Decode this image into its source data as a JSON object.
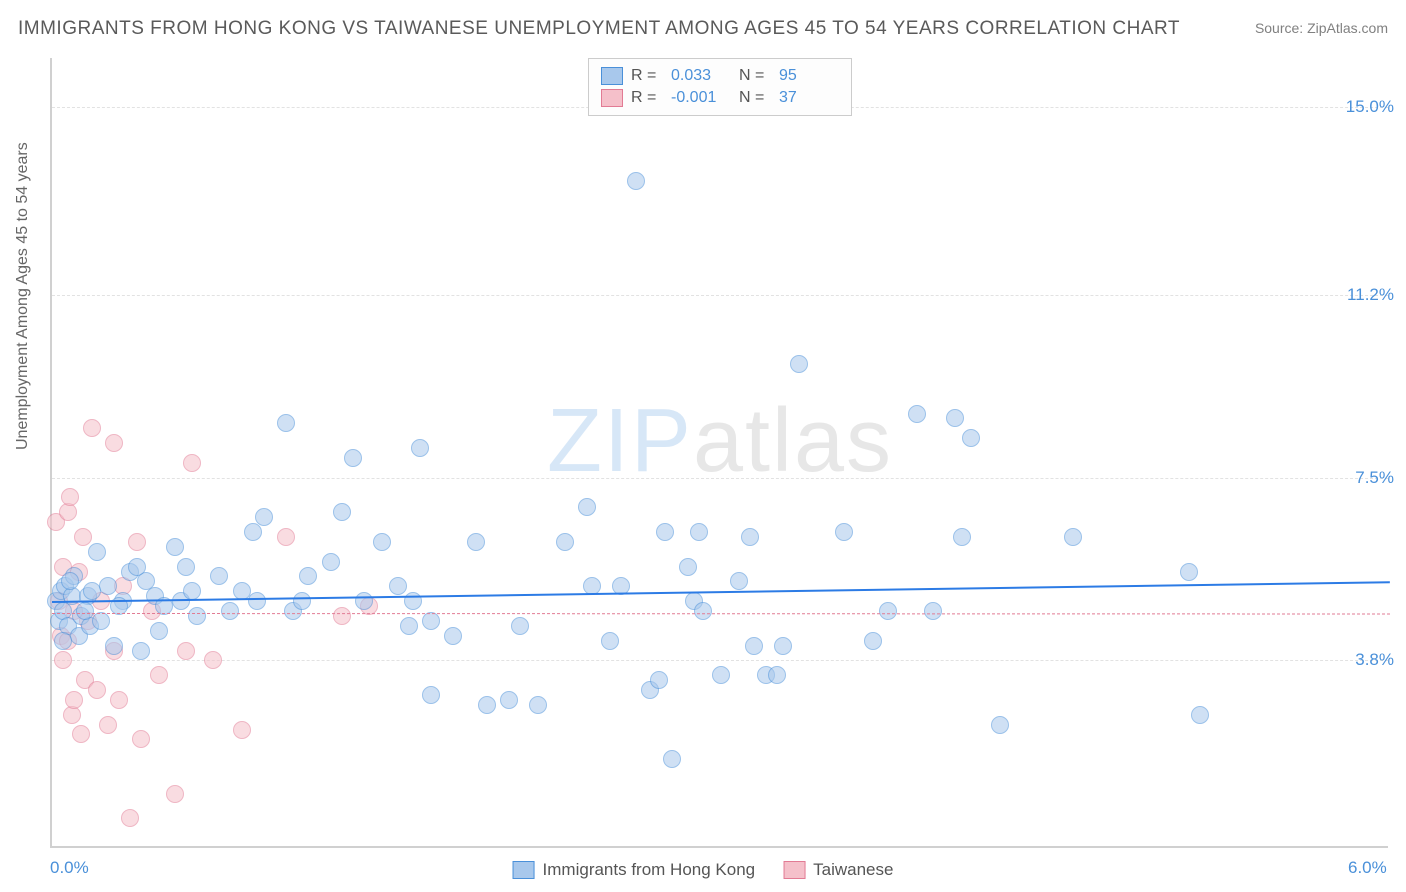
{
  "title": "IMMIGRANTS FROM HONG KONG VS TAIWANESE UNEMPLOYMENT AMONG AGES 45 TO 54 YEARS CORRELATION CHART",
  "source": "Source: ZipAtlas.com",
  "y_axis_label": "Unemployment Among Ages 45 to 54 years",
  "watermark_a": "ZIP",
  "watermark_b": "atlas",
  "chart": {
    "type": "scatter",
    "background_color": "#ffffff",
    "grid_color": "#e2e2e2",
    "axis_color": "#d0d0d0",
    "tick_label_color": "#4a90d9",
    "axis_label_color": "#666666",
    "title_color": "#5a5a5a",
    "xlim": [
      0.0,
      6.0
    ],
    "ylim": [
      0.0,
      16.0
    ],
    "x_ticks": [
      {
        "value": 0.0,
        "label": "0.0%"
      },
      {
        "value": 6.0,
        "label": "6.0%"
      }
    ],
    "y_ticks": [
      {
        "value": 3.8,
        "label": "3.8%"
      },
      {
        "value": 7.5,
        "label": "7.5%"
      },
      {
        "value": 11.2,
        "label": "11.2%"
      },
      {
        "value": 15.0,
        "label": "15.0%"
      }
    ],
    "marker_radius": 9,
    "marker_opacity": 0.55,
    "series": {
      "hongkong": {
        "name": "Immigrants from Hong Kong",
        "fill_color": "#a8c8ec",
        "stroke_color": "#4a90d9",
        "R": "0.033",
        "N": "95",
        "trend": {
          "x0": 0.0,
          "y0": 5.0,
          "x1": 6.0,
          "y1": 5.4,
          "color": "#2c7be5",
          "width": 2.5,
          "dash": "solid"
        },
        "points": [
          [
            0.02,
            5.0
          ],
          [
            0.03,
            4.6
          ],
          [
            0.04,
            5.2
          ],
          [
            0.05,
            4.8
          ],
          [
            0.06,
            5.3
          ],
          [
            0.07,
            4.5
          ],
          [
            0.09,
            5.1
          ],
          [
            0.1,
            5.5
          ],
          [
            0.12,
            4.3
          ],
          [
            0.13,
            4.7
          ],
          [
            0.16,
            5.1
          ],
          [
            0.17,
            4.5
          ],
          [
            0.2,
            6.0
          ],
          [
            0.22,
            4.6
          ],
          [
            0.25,
            5.3
          ],
          [
            0.28,
            4.1
          ],
          [
            0.32,
            5.0
          ],
          [
            0.35,
            5.6
          ],
          [
            0.4,
            4.0
          ],
          [
            0.42,
            5.4
          ],
          [
            0.46,
            5.1
          ],
          [
            0.48,
            4.4
          ],
          [
            0.55,
            6.1
          ],
          [
            0.58,
            5.0
          ],
          [
            0.6,
            5.7
          ],
          [
            0.65,
            4.7
          ],
          [
            0.75,
            5.5
          ],
          [
            0.8,
            4.8
          ],
          [
            0.85,
            5.2
          ],
          [
            0.92,
            5.0
          ],
          [
            0.95,
            6.7
          ],
          [
            1.05,
            8.6
          ],
          [
            1.08,
            4.8
          ],
          [
            1.15,
            5.5
          ],
          [
            1.3,
            6.8
          ],
          [
            1.35,
            7.9
          ],
          [
            1.4,
            5.0
          ],
          [
            1.48,
            6.2
          ],
          [
            1.55,
            5.3
          ],
          [
            1.6,
            4.5
          ],
          [
            1.62,
            5.0
          ],
          [
            1.7,
            4.6
          ],
          [
            1.7,
            3.1
          ],
          [
            1.65,
            8.1
          ],
          [
            1.8,
            4.3
          ],
          [
            1.9,
            6.2
          ],
          [
            1.95,
            2.9
          ],
          [
            2.05,
            3.0
          ],
          [
            2.1,
            4.5
          ],
          [
            2.18,
            2.9
          ],
          [
            2.3,
            6.2
          ],
          [
            2.4,
            6.9
          ],
          [
            2.42,
            5.3
          ],
          [
            2.5,
            4.2
          ],
          [
            2.55,
            5.3
          ],
          [
            2.62,
            13.5
          ],
          [
            2.68,
            3.2
          ],
          [
            2.72,
            3.4
          ],
          [
            2.75,
            6.4
          ],
          [
            2.78,
            1.8
          ],
          [
            2.85,
            5.7
          ],
          [
            2.88,
            5.0
          ],
          [
            2.9,
            6.4
          ],
          [
            2.92,
            4.8
          ],
          [
            3.0,
            3.5
          ],
          [
            3.08,
            5.4
          ],
          [
            3.13,
            6.3
          ],
          [
            3.15,
            4.1
          ],
          [
            3.2,
            3.5
          ],
          [
            3.25,
            3.5
          ],
          [
            3.28,
            4.1
          ],
          [
            3.35,
            9.8
          ],
          [
            3.55,
            6.4
          ],
          [
            3.68,
            4.2
          ],
          [
            3.75,
            4.8
          ],
          [
            3.88,
            8.8
          ],
          [
            3.95,
            4.8
          ],
          [
            4.05,
            8.7
          ],
          [
            4.08,
            6.3
          ],
          [
            4.12,
            8.3
          ],
          [
            4.25,
            2.5
          ],
          [
            4.58,
            6.3
          ],
          [
            5.1,
            5.6
          ],
          [
            5.15,
            2.7
          ],
          [
            0.05,
            4.2
          ],
          [
            0.08,
            5.4
          ],
          [
            0.15,
            4.8
          ],
          [
            0.18,
            5.2
          ],
          [
            0.3,
            4.9
          ],
          [
            0.38,
            5.7
          ],
          [
            0.5,
            4.9
          ],
          [
            0.63,
            5.2
          ],
          [
            0.9,
            6.4
          ],
          [
            1.12,
            5.0
          ],
          [
            1.25,
            5.8
          ]
        ]
      },
      "taiwanese": {
        "name": "Taiwanese",
        "fill_color": "#f5c0ca",
        "stroke_color": "#e27b94",
        "R": "-0.001",
        "N": "37",
        "trend": {
          "x0": 0.0,
          "y0": 4.75,
          "x1": 6.0,
          "y1": 4.74,
          "color": "#e27b94",
          "width": 1.5,
          "dash": "dashed"
        },
        "points": [
          [
            0.02,
            6.6
          ],
          [
            0.03,
            5.0
          ],
          [
            0.04,
            4.3
          ],
          [
            0.05,
            5.7
          ],
          [
            0.05,
            3.8
          ],
          [
            0.07,
            6.8
          ],
          [
            0.07,
            4.2
          ],
          [
            0.08,
            7.1
          ],
          [
            0.09,
            2.7
          ],
          [
            0.1,
            4.8
          ],
          [
            0.1,
            3.0
          ],
          [
            0.12,
            5.6
          ],
          [
            0.13,
            2.3
          ],
          [
            0.14,
            6.3
          ],
          [
            0.15,
            3.4
          ],
          [
            0.16,
            4.6
          ],
          [
            0.18,
            8.5
          ],
          [
            0.2,
            3.2
          ],
          [
            0.22,
            5.0
          ],
          [
            0.25,
            2.5
          ],
          [
            0.28,
            4.0
          ],
          [
            0.28,
            8.2
          ],
          [
            0.3,
            3.0
          ],
          [
            0.32,
            5.3
          ],
          [
            0.35,
            0.6
          ],
          [
            0.38,
            6.2
          ],
          [
            0.4,
            2.2
          ],
          [
            0.45,
            4.8
          ],
          [
            0.48,
            3.5
          ],
          [
            0.55,
            1.1
          ],
          [
            0.6,
            4.0
          ],
          [
            0.63,
            7.8
          ],
          [
            0.72,
            3.8
          ],
          [
            0.85,
            2.4
          ],
          [
            1.05,
            6.3
          ],
          [
            1.3,
            4.7
          ],
          [
            1.42,
            4.9
          ]
        ]
      }
    }
  },
  "legend_labels": {
    "R": "R =",
    "N": "N ="
  }
}
